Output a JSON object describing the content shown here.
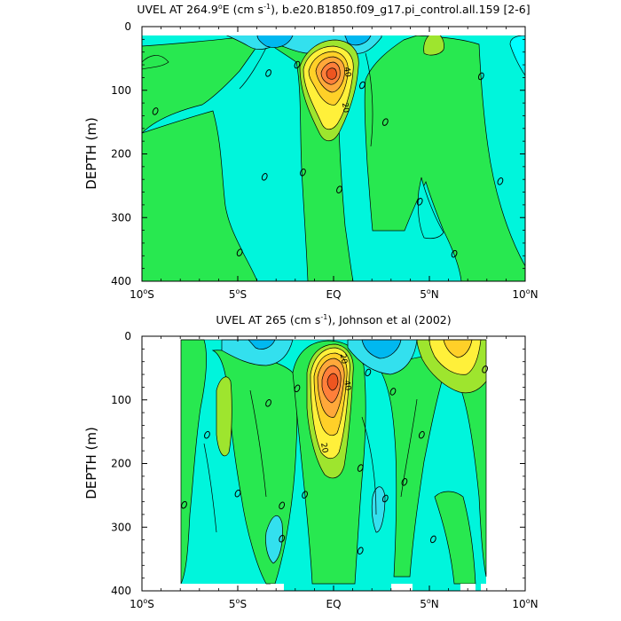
{
  "chart_data": [
    {
      "type": "contour",
      "title": "UVEL AT 264.9°E (cm s⁻¹), b.e20.B1850.f09_g17.pi_control.all.159 [2-6]",
      "title_parts": {
        "a": "UVEL AT 264.9",
        "b": "o",
        "c": "E (cm s",
        "d": "-1",
        "e": "), b.e20.B1850.f09_g17.pi_control.all.159 [2-6]"
      },
      "ylabel": "DEPTH (m)",
      "x_ticks": [
        {
          "value": -10,
          "label": "10",
          "suffix": "S",
          "deg": true
        },
        {
          "value": -5,
          "label": "5",
          "suffix": "S",
          "deg": true
        },
        {
          "value": 0,
          "label": "EQ",
          "suffix": "",
          "deg": false
        },
        {
          "value": 5,
          "label": "5",
          "suffix": "N",
          "deg": true
        },
        {
          "value": 10,
          "label": "10",
          "suffix": "N",
          "deg": true
        }
      ],
      "y_ticks": [
        "0",
        "100",
        "200",
        "300",
        "400"
      ],
      "y_values": [
        0,
        100,
        200,
        300,
        400
      ],
      "xlim": [
        -10,
        10
      ],
      "ylim": [
        0,
        400
      ],
      "y_inverted": true,
      "contour_labels": [
        {
          "text": "40",
          "lat": 0.6,
          "depth": 72
        },
        {
          "text": "20",
          "lat": 0.5,
          "depth": 128
        }
      ],
      "zero_labels": [
        {
          "lat": -3.4,
          "depth": 73
        },
        {
          "lat": -1.9,
          "depth": 60
        },
        {
          "lat": 1.5,
          "depth": 92
        },
        {
          "lat": -9.3,
          "depth": 133
        },
        {
          "lat": 2.7,
          "depth": 150
        },
        {
          "lat": 7.7,
          "depth": 78
        },
        {
          "lat": -3.6,
          "depth": 236
        },
        {
          "lat": -1.6,
          "depth": 229
        },
        {
          "lat": 0.3,
          "depth": 256
        },
        {
          "lat": 4.5,
          "depth": 275
        },
        {
          "lat": 8.7,
          "depth": 243
        },
        {
          "lat": -4.9,
          "depth": 355
        },
        {
          "lat": 6.3,
          "depth": 357
        }
      ],
      "colors": [
        "#00ccee",
        "#33e0ee",
        "#00f5dc",
        "#33f0a6",
        "#28e850",
        "#9ee52e",
        "#fff03a",
        "#ffd028",
        "#ffa83a",
        "#ff7f3a",
        "#ee5520"
      ]
    },
    {
      "type": "contour",
      "title": "UVEL AT 265 (cm s⁻¹), Johnson et al (2002)",
      "title_parts": {
        "a": "UVEL AT 265 (cm s",
        "d": "-1",
        "e": "), Johnson et al (2002)"
      },
      "ylabel": "DEPTH (m)",
      "x_ticks": [
        {
          "value": -10,
          "label": "10",
          "suffix": "S",
          "deg": true
        },
        {
          "value": -5,
          "label": "5",
          "suffix": "S",
          "deg": true
        },
        {
          "value": 0,
          "label": "EQ",
          "suffix": "",
          "deg": false
        },
        {
          "value": 5,
          "label": "5",
          "suffix": "N",
          "deg": true
        },
        {
          "value": 10,
          "label": "10",
          "suffix": "N",
          "deg": true
        }
      ],
      "y_ticks": [
        "0",
        "100",
        "200",
        "300",
        "400"
      ],
      "y_values": [
        0,
        100,
        200,
        300,
        400
      ],
      "xlim": [
        -10,
        10
      ],
      "ylim": [
        0,
        400
      ],
      "y_inverted": true,
      "data_lat_range": [
        -7.9,
        8.1
      ],
      "contour_labels": [
        {
          "text": "20",
          "lat": 0.4,
          "depth": 36
        },
        {
          "text": "40",
          "lat": 0.6,
          "depth": 78
        },
        {
          "text": "20",
          "lat": -0.6,
          "depth": 176
        }
      ],
      "zero_labels": [
        {
          "lat": -6.6,
          "depth": 155
        },
        {
          "lat": -3.4,
          "depth": 105
        },
        {
          "lat": -1.9,
          "depth": 82
        },
        {
          "lat": 1.8,
          "depth": 57
        },
        {
          "lat": 3.1,
          "depth": 87
        },
        {
          "lat": 7.9,
          "depth": 52
        },
        {
          "lat": -7.8,
          "depth": 265
        },
        {
          "lat": -5.0,
          "depth": 247
        },
        {
          "lat": -2.7,
          "depth": 266
        },
        {
          "lat": -1.5,
          "depth": 249
        },
        {
          "lat": 1.4,
          "depth": 207
        },
        {
          "lat": 2.7,
          "depth": 255
        },
        {
          "lat": 3.7,
          "depth": 229
        },
        {
          "lat": 4.6,
          "depth": 155
        },
        {
          "lat": -2.7,
          "depth": 318
        },
        {
          "lat": 1.4,
          "depth": 337
        },
        {
          "lat": 5.2,
          "depth": 319
        }
      ],
      "colors": [
        "#00ccee",
        "#33e0ee",
        "#00f5dc",
        "#33f0a6",
        "#28e850",
        "#9ee52e",
        "#fff03a",
        "#ffd028",
        "#ffa83a",
        "#ff7f3a",
        "#ee5520"
      ]
    }
  ]
}
